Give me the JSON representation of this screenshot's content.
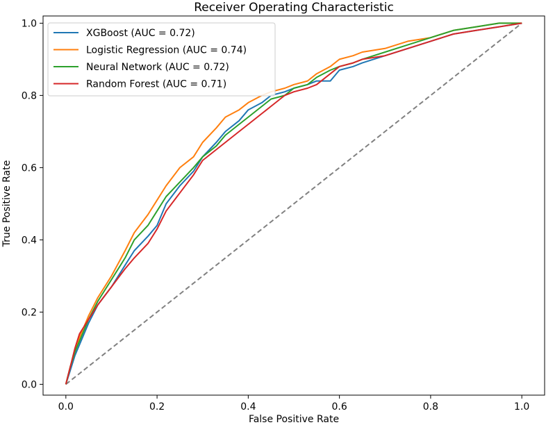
{
  "chart_data": {
    "type": "line",
    "title": "Receiver Operating Characteristic",
    "xlabel": "False Positive Rate",
    "ylabel": "True Positive Rate",
    "xlim": [
      -0.05,
      1.05
    ],
    "ylim": [
      -0.03,
      1.02
    ],
    "xticks": [
      0.0,
      0.2,
      0.4,
      0.6,
      0.8,
      1.0
    ],
    "xtick_labels": [
      "0.0",
      "0.2",
      "0.4",
      "0.6",
      "0.8",
      "1.0"
    ],
    "yticks": [
      0.0,
      0.2,
      0.4,
      0.6,
      0.8,
      1.0
    ],
    "ytick_labels": [
      "0.0",
      "0.2",
      "0.4",
      "0.6",
      "0.8",
      "1.0"
    ],
    "legend_position": "top-left",
    "reference_line": {
      "name": "chance",
      "color": "#808080",
      "style": "dashed",
      "x": [
        0,
        1
      ],
      "y": [
        0,
        1
      ]
    },
    "series": [
      {
        "name": "XGBoost (AUC = 0.72)",
        "color": "#1f77b4",
        "x": [
          0,
          0.01,
          0.02,
          0.03,
          0.05,
          0.07,
          0.1,
          0.13,
          0.15,
          0.18,
          0.2,
          0.22,
          0.25,
          0.28,
          0.3,
          0.33,
          0.35,
          0.38,
          0.4,
          0.43,
          0.45,
          0.48,
          0.5,
          0.53,
          0.55,
          0.58,
          0.6,
          0.63,
          0.65,
          0.7,
          0.75,
          0.8,
          0.85,
          0.9,
          0.95,
          1.0
        ],
        "y": [
          0,
          0.04,
          0.08,
          0.11,
          0.17,
          0.22,
          0.27,
          0.33,
          0.37,
          0.41,
          0.44,
          0.5,
          0.55,
          0.59,
          0.63,
          0.67,
          0.7,
          0.73,
          0.76,
          0.78,
          0.8,
          0.81,
          0.82,
          0.83,
          0.84,
          0.84,
          0.87,
          0.88,
          0.89,
          0.91,
          0.93,
          0.95,
          0.97,
          0.98,
          0.99,
          1.0
        ]
      },
      {
        "name": "Logistic Regression (AUC = 0.74)",
        "color": "#ff7f0e",
        "x": [
          0,
          0.01,
          0.02,
          0.03,
          0.05,
          0.07,
          0.1,
          0.13,
          0.15,
          0.18,
          0.2,
          0.22,
          0.25,
          0.28,
          0.3,
          0.33,
          0.35,
          0.38,
          0.4,
          0.43,
          0.45,
          0.48,
          0.5,
          0.53,
          0.55,
          0.58,
          0.6,
          0.63,
          0.65,
          0.7,
          0.75,
          0.8,
          0.85,
          0.9,
          0.95,
          1.0
        ],
        "y": [
          0,
          0.05,
          0.09,
          0.13,
          0.19,
          0.24,
          0.3,
          0.37,
          0.42,
          0.47,
          0.51,
          0.55,
          0.6,
          0.63,
          0.67,
          0.71,
          0.74,
          0.76,
          0.78,
          0.8,
          0.81,
          0.82,
          0.83,
          0.84,
          0.86,
          0.88,
          0.9,
          0.91,
          0.92,
          0.93,
          0.95,
          0.96,
          0.98,
          0.99,
          1.0,
          1.0
        ]
      },
      {
        "name": "Neural Network (AUC = 0.72)",
        "color": "#2ca02c",
        "x": [
          0,
          0.01,
          0.02,
          0.03,
          0.05,
          0.07,
          0.1,
          0.13,
          0.15,
          0.18,
          0.2,
          0.22,
          0.25,
          0.28,
          0.3,
          0.33,
          0.35,
          0.38,
          0.4,
          0.43,
          0.45,
          0.48,
          0.5,
          0.53,
          0.55,
          0.58,
          0.6,
          0.63,
          0.65,
          0.7,
          0.75,
          0.8,
          0.85,
          0.9,
          0.95,
          1.0
        ],
        "y": [
          0,
          0.05,
          0.09,
          0.12,
          0.18,
          0.23,
          0.29,
          0.35,
          0.4,
          0.44,
          0.48,
          0.52,
          0.56,
          0.6,
          0.63,
          0.66,
          0.69,
          0.72,
          0.74,
          0.77,
          0.79,
          0.8,
          0.82,
          0.83,
          0.85,
          0.87,
          0.88,
          0.89,
          0.9,
          0.92,
          0.94,
          0.96,
          0.98,
          0.99,
          1.0,
          1.0
        ]
      },
      {
        "name": "Random Forest (AUC = 0.71)",
        "color": "#d62728",
        "x": [
          0,
          0.01,
          0.02,
          0.03,
          0.05,
          0.07,
          0.1,
          0.13,
          0.15,
          0.18,
          0.2,
          0.22,
          0.25,
          0.28,
          0.3,
          0.33,
          0.35,
          0.38,
          0.4,
          0.43,
          0.45,
          0.48,
          0.5,
          0.53,
          0.55,
          0.58,
          0.6,
          0.63,
          0.65,
          0.7,
          0.75,
          0.8,
          0.85,
          0.9,
          0.95,
          1.0
        ],
        "y": [
          0,
          0.05,
          0.1,
          0.14,
          0.18,
          0.22,
          0.27,
          0.32,
          0.35,
          0.39,
          0.43,
          0.48,
          0.53,
          0.58,
          0.62,
          0.65,
          0.67,
          0.7,
          0.72,
          0.75,
          0.77,
          0.8,
          0.81,
          0.82,
          0.83,
          0.86,
          0.88,
          0.89,
          0.9,
          0.91,
          0.93,
          0.95,
          0.97,
          0.98,
          0.99,
          1.0
        ]
      }
    ]
  }
}
